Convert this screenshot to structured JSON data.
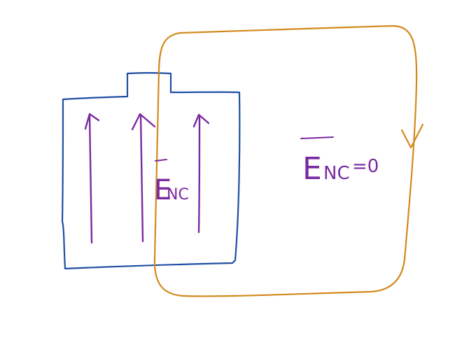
{
  "colors": {
    "background": "#ffffff",
    "box": "#1f4fa3",
    "loop": "#d4891c",
    "field": "#7a2aa0"
  },
  "labels": {
    "inside_field": "E",
    "inside_subscript": "NC",
    "outside_field": "E",
    "outside_subscript": "NC",
    "outside_equation": "=0"
  }
}
